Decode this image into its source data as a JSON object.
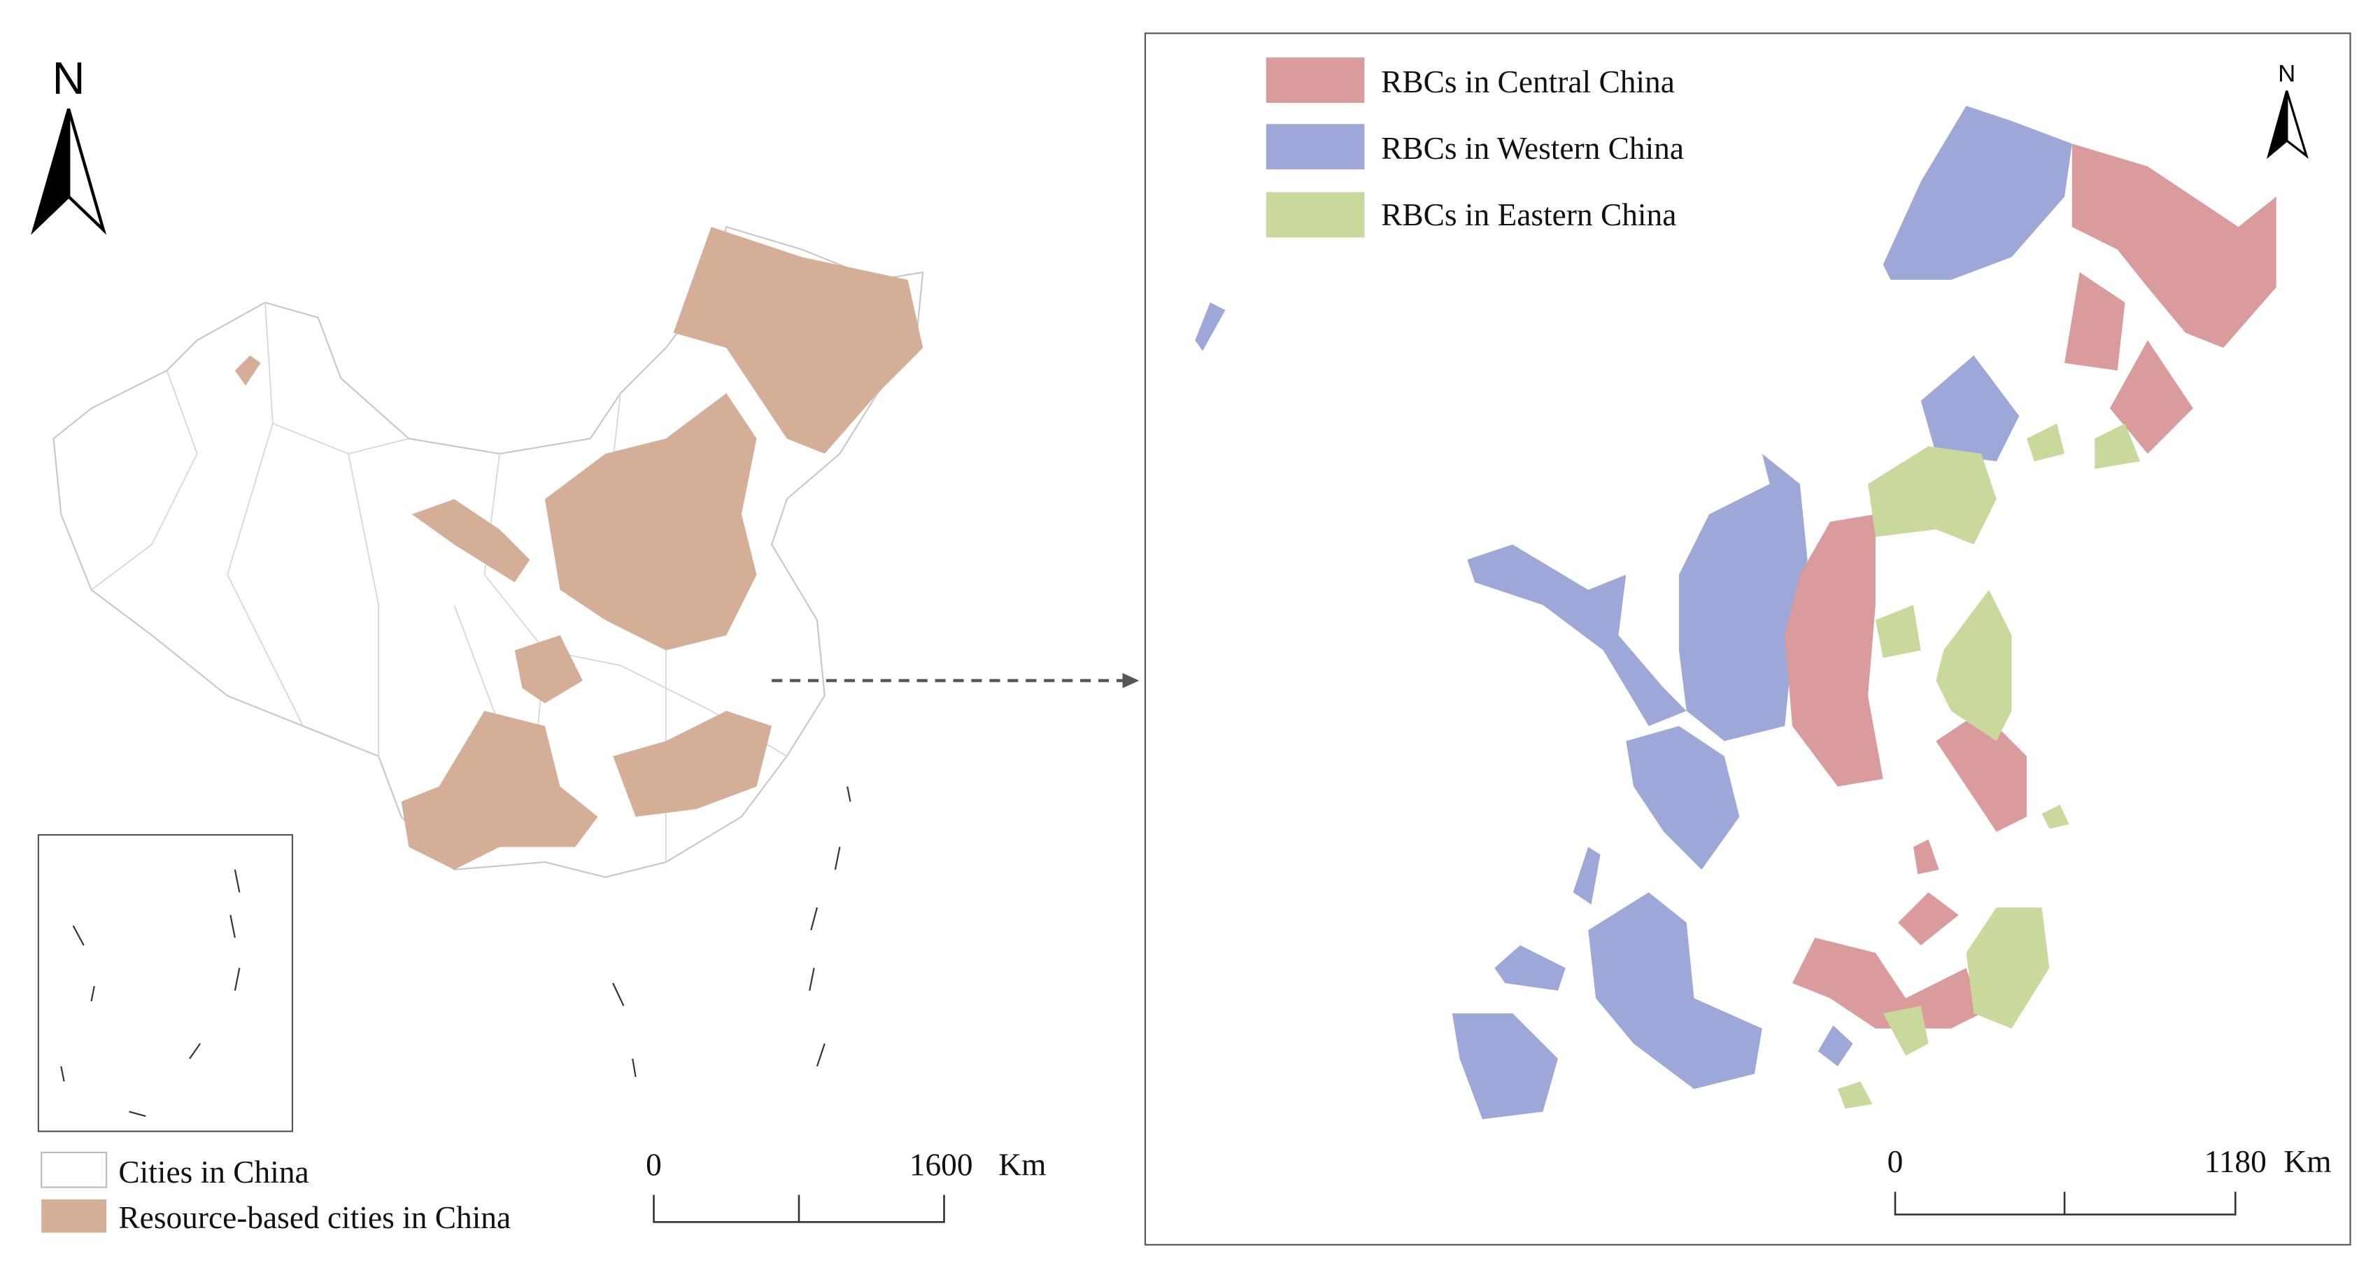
{
  "left_map": {
    "north": "N",
    "legend": [
      {
        "label": "Cities in China",
        "color": "#ffffff"
      },
      {
        "label": "Resource-based cities in China",
        "color": "#d5ae97"
      }
    ],
    "scale": {
      "start": 0,
      "end": 1600,
      "unit": "Km"
    }
  },
  "right_map": {
    "north": "N",
    "legend": [
      {
        "label": "RBCs in Central China",
        "color": "#d99b9b"
      },
      {
        "label": "RBCs in Western China",
        "color": "#9ea8d8"
      },
      {
        "label": "RBCs in Eastern China",
        "color": "#c9d99b"
      }
    ],
    "scale": {
      "start": 0,
      "end": 1180,
      "unit": "Km"
    }
  }
}
